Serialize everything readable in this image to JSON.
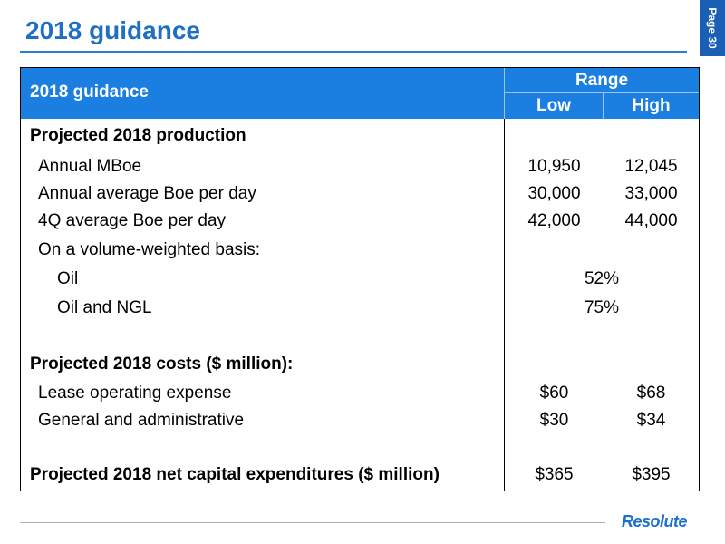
{
  "slide": {
    "title": "2018 guidance",
    "page_label": "Page 30"
  },
  "table": {
    "header": {
      "label": "2018 guidance",
      "range": "Range",
      "low": "Low",
      "high": "High"
    },
    "rows": [
      {
        "label": "Projected 2018 production",
        "low": "",
        "high": "",
        "span": ""
      },
      {
        "label": "Annual MBoe",
        "low": "10,950",
        "high": "12,045",
        "span": ""
      },
      {
        "label": "Annual average Boe per day",
        "low": "30,000",
        "high": "33,000",
        "span": ""
      },
      {
        "label": "4Q average Boe per day",
        "low": "42,000",
        "high": "44,000",
        "span": ""
      },
      {
        "label": "On a volume-weighted basis:",
        "low": "",
        "high": "",
        "span": ""
      },
      {
        "label": "Oil",
        "low": "",
        "high": "",
        "span": "52%"
      },
      {
        "label": "Oil and NGL",
        "low": "",
        "high": "",
        "span": "75%"
      },
      {
        "label": "Projected 2018 costs ($ million):",
        "low": "",
        "high": "",
        "span": ""
      },
      {
        "label": "Lease operating expense",
        "low": "$60",
        "high": "$68",
        "span": ""
      },
      {
        "label": "General and administrative",
        "low": "$30",
        "high": "$34",
        "span": ""
      },
      {
        "label": "Projected 2018 net capital expenditures ($ million)",
        "low": "$365",
        "high": "$395",
        "span": ""
      }
    ]
  },
  "footer": {
    "logo_text": "Resolute"
  }
}
